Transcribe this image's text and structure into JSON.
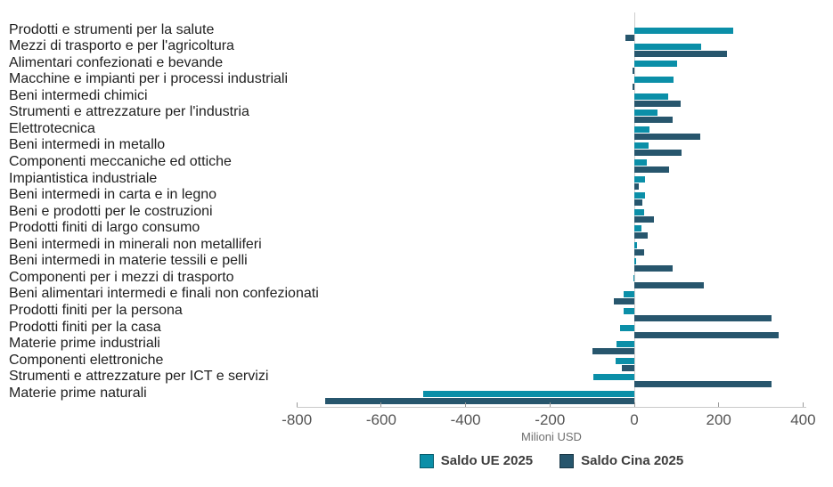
{
  "chart_data": {
    "type": "bar",
    "orientation": "horizontal",
    "title": "",
    "xlabel": "Milioni USD",
    "xlim": [
      -800,
      400
    ],
    "x_ticks": [
      -800,
      -600,
      -400,
      -200,
      0,
      200,
      400
    ],
    "grid": "zero-line-only",
    "legend_position": "bottom",
    "categories": [
      "Prodotti e strumenti per la salute",
      "Mezzi di trasporto e per l'agricoltura",
      "Alimentari confezionati e bevande",
      "Macchine e impianti per i processi industriali",
      "Beni intermedi chimici",
      "Strumenti e attrezzature per l'industria",
      "Elettrotecnica",
      "Beni intermedi in metallo",
      "Componenti meccaniche ed ottiche",
      "Impiantistica industriale",
      "Beni intermedi in carta e in legno",
      "Beni e prodotti per le costruzioni",
      "Prodotti finiti di largo consumo",
      "Beni intermedi in minerali non metalliferi",
      "Beni intermedi in materie tessili e pelli",
      "Componenti per i mezzi di trasporto",
      "Beni alimentari intermedi e finali non confezionati",
      "Prodotti finiti per la persona",
      "Prodotti finiti per la casa",
      "Materie prime industriali",
      "Componenti elettroniche",
      "Strumenti e attrezzature per ICT e servizi",
      "Materie prime naturali"
    ],
    "series": [
      {
        "name": "Saldo UE 2025",
        "color": "#0b8fa8",
        "values": [
          234,
          159,
          101,
          93,
          80,
          54,
          35,
          34,
          30,
          26,
          26,
          23,
          16,
          7,
          4,
          -2,
          -25,
          -25,
          -34,
          -43,
          -45,
          -98,
          -500
        ]
      },
      {
        "name": "Saldo Cina 2025",
        "color": "#27566d",
        "values": [
          -22,
          219,
          -4,
          -5,
          109,
          91,
          156,
          112,
          82,
          10,
          19,
          47,
          31,
          23,
          91,
          165,
          -48,
          325,
          342,
          -100,
          -30,
          325,
          -732
        ]
      }
    ]
  }
}
